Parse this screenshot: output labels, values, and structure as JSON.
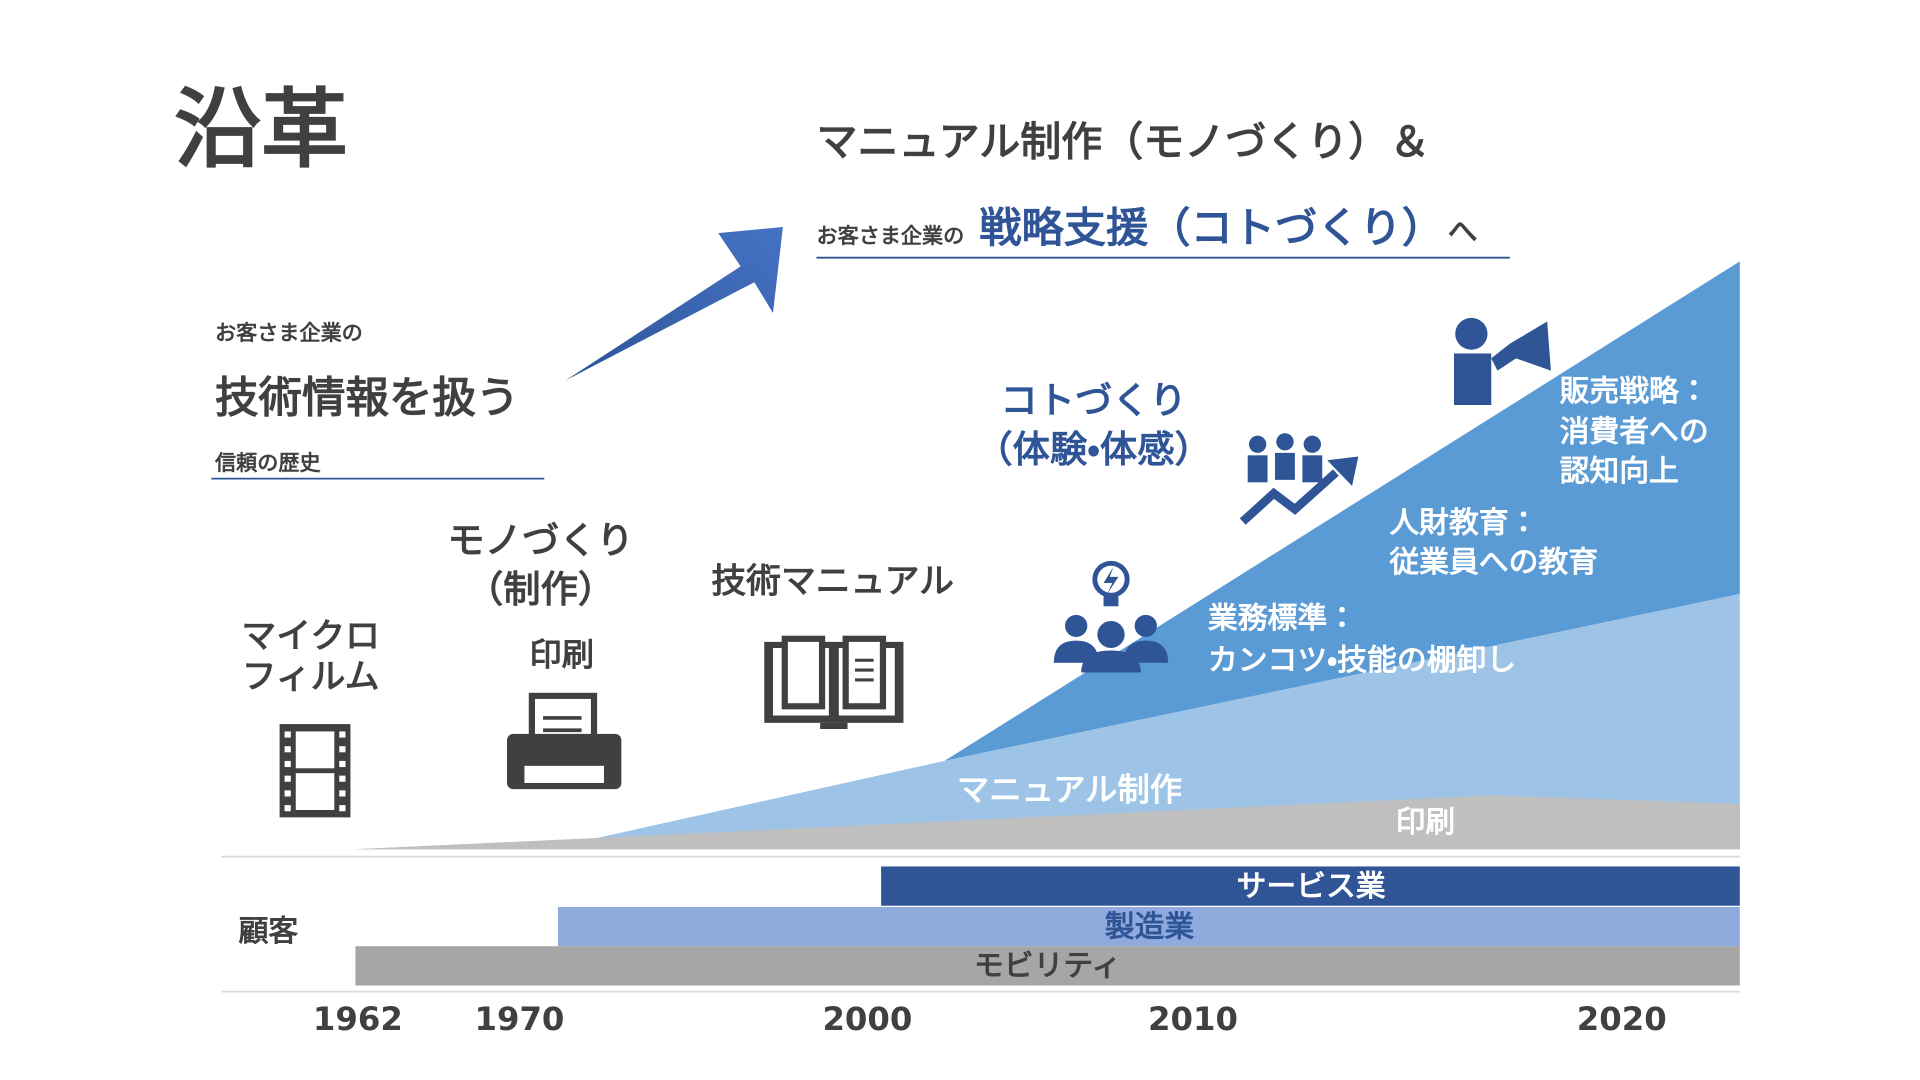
{
  "title": "沿革",
  "headline": {
    "line1": "マニュアル制作（モノづくり）＆",
    "prefix": "お客さま企業の",
    "emphasis": "戦略支援（コトづくり）",
    "suffix": "へ"
  },
  "intro": {
    "small": "お客さま企業の",
    "main": "技術情報を扱う",
    "sub": "信頼の歴史"
  },
  "eras": {
    "microfilm": [
      "マイクロ",
      "フィルム"
    ],
    "monozukuri": [
      "モノづくり",
      "（制作）"
    ],
    "printing": "印刷",
    "manual": "技術マニュアル",
    "kotozukuri": [
      "コトづくり",
      "（体験・体感）"
    ]
  },
  "areas": {
    "printing": "印刷",
    "manual": "マニュアル制作",
    "standards": [
      "業務標準：",
      "カンコツ・技能の棚卸し"
    ],
    "education": [
      "人財教育：",
      "従業員への教育"
    ],
    "sales": [
      "販売戦略：",
      "消費者への",
      "認知向上"
    ]
  },
  "customers": {
    "label": "顧客",
    "bars": [
      "サービス業",
      "製造業",
      "モビリティ"
    ]
  },
  "years": [
    "1962",
    "1970",
    "2000",
    "2010",
    "2020"
  ]
}
